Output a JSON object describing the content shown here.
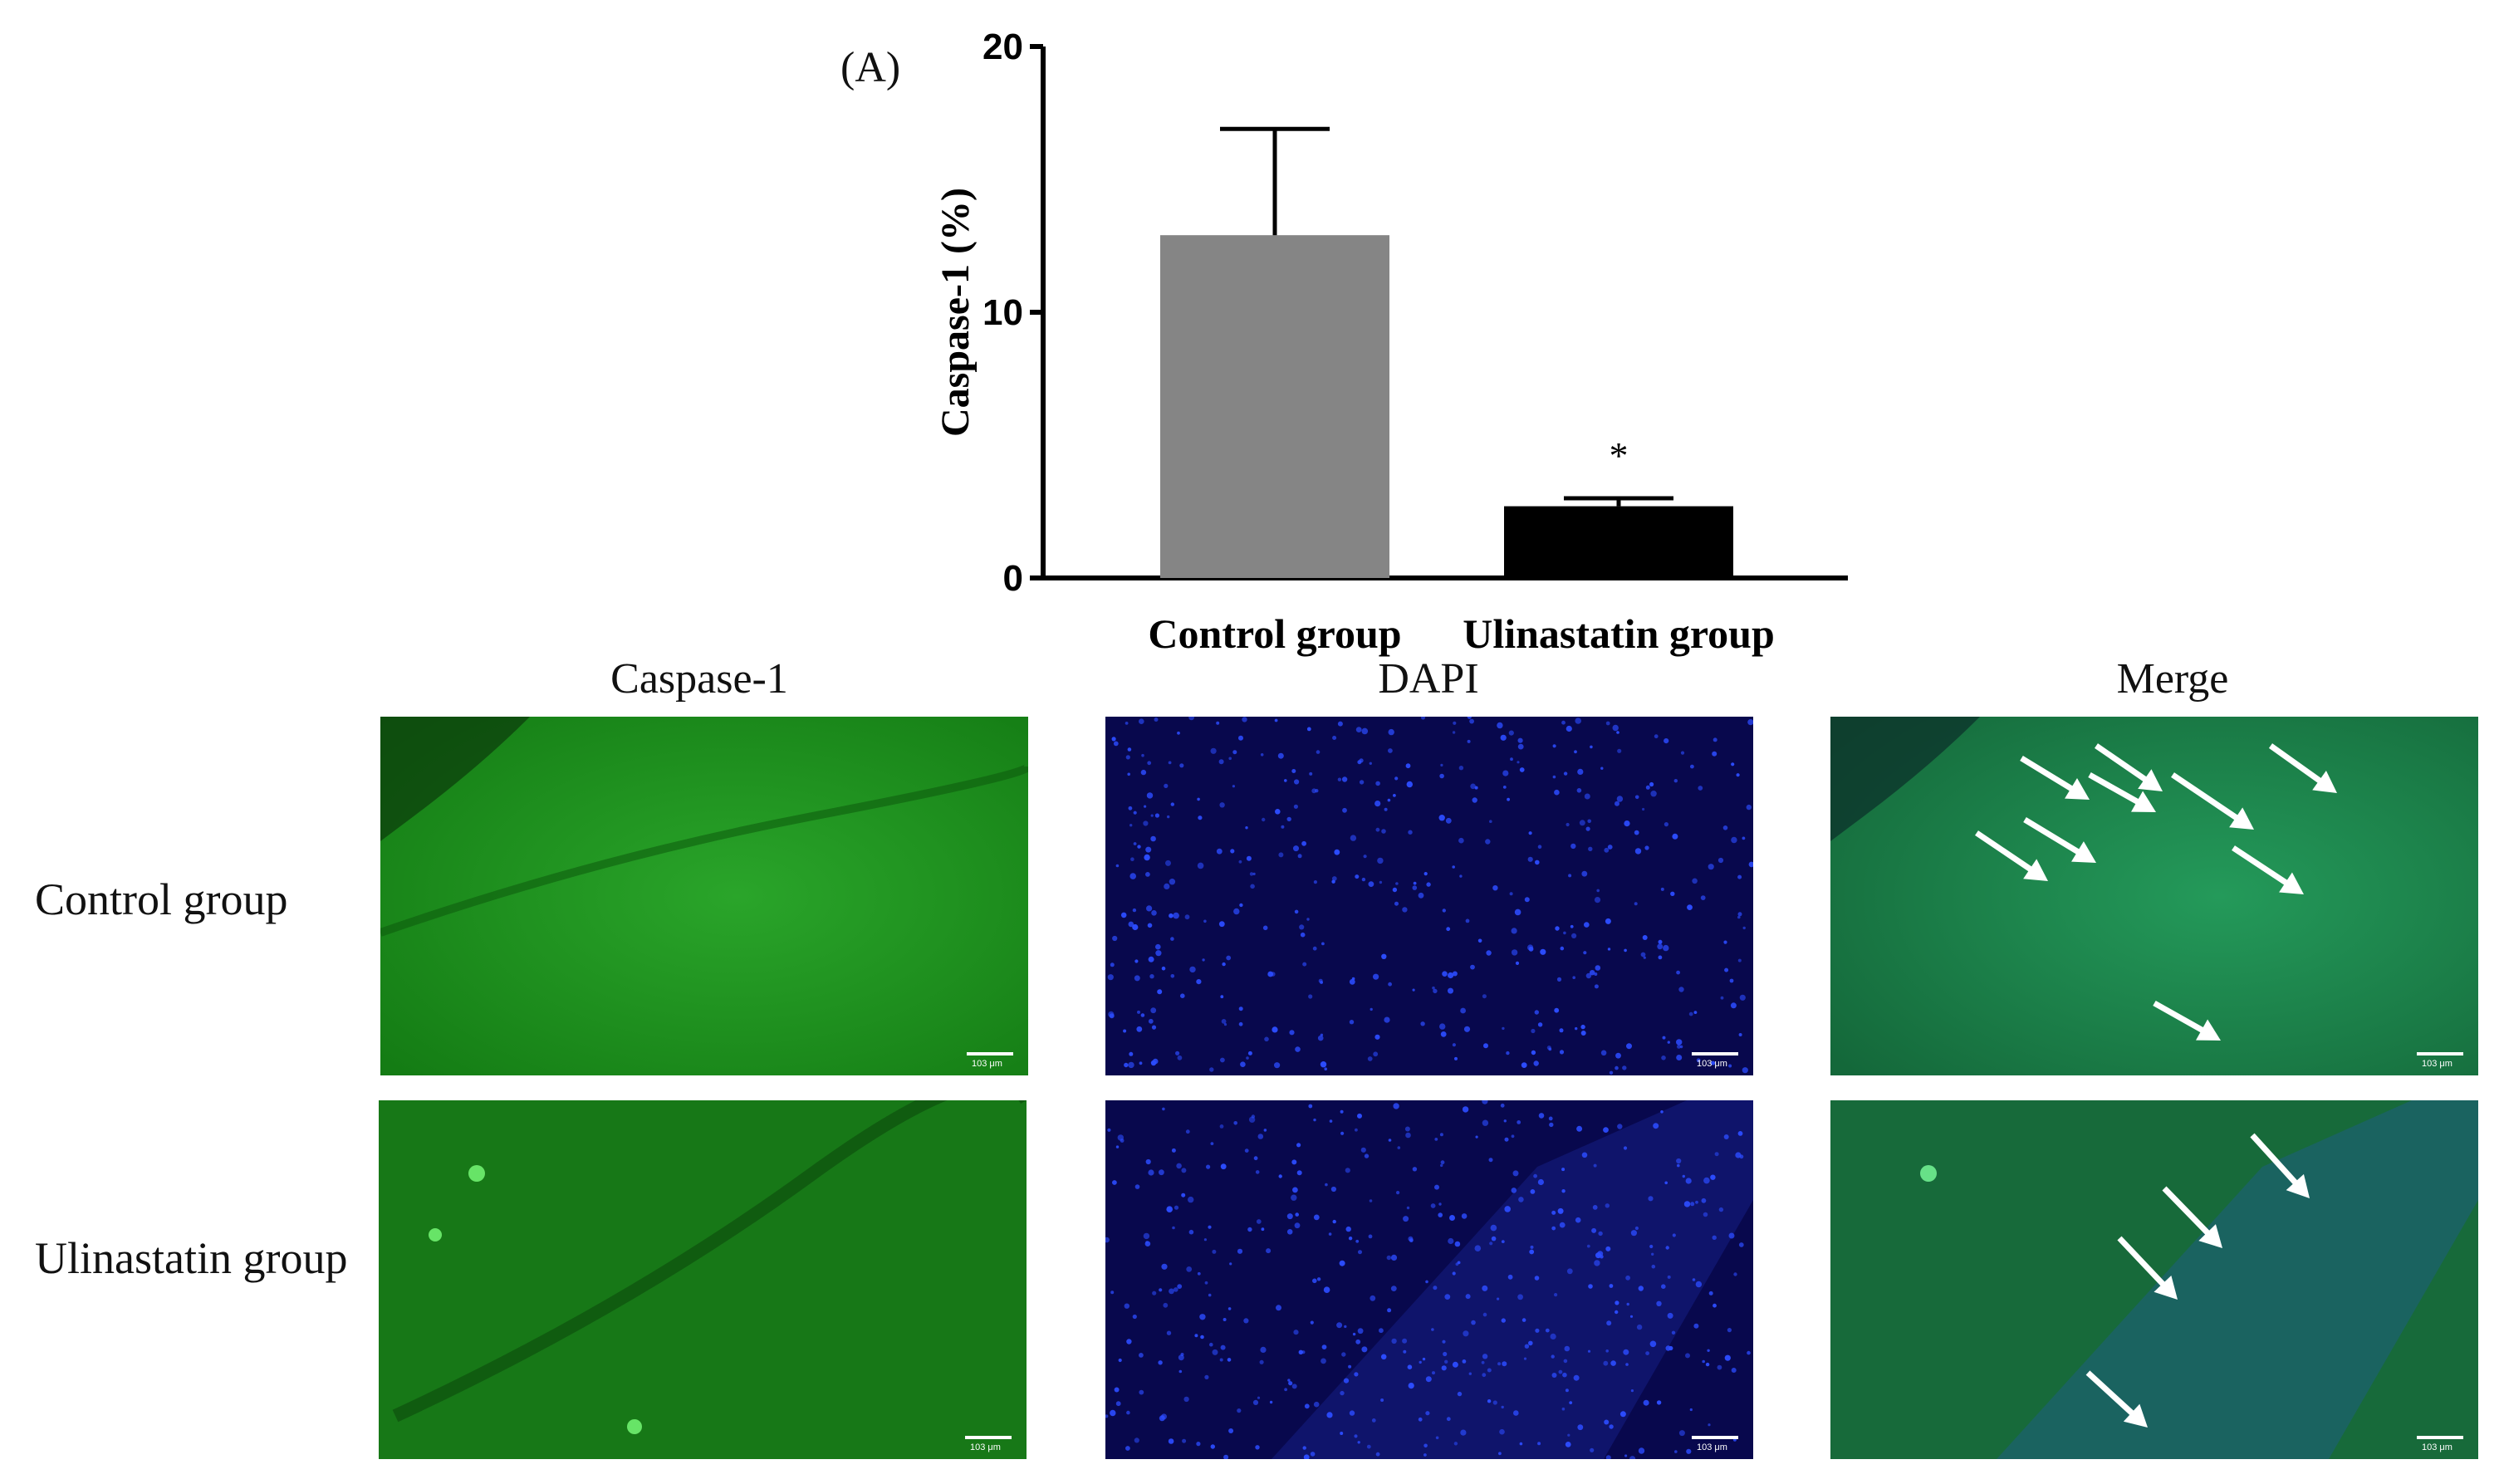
{
  "figure_label": "(A)",
  "chart_data": {
    "type": "bar",
    "categories": [
      "Control group",
      "Ulinastatin group"
    ],
    "values": [
      12.9,
      2.7
    ],
    "error_upper": [
      16.9,
      3.0
    ],
    "significance": [
      "",
      "*"
    ],
    "ylabel": "Caspase-1 (%)",
    "xlabel": "",
    "ylim": [
      0,
      20
    ],
    "yticks": [
      0,
      10,
      20
    ],
    "colors": [
      "#858585",
      "#000000"
    ],
    "grid": false
  },
  "micrographs": {
    "columns": [
      "Caspase-1",
      "DAPI",
      "Merge"
    ],
    "rows": [
      "Control group",
      "Ulinastatin group"
    ],
    "scale_bar": "103 μm",
    "channel_colors": {
      "caspase": "#1f9a1f",
      "dapi": "#0a0a55",
      "merge": "#1e7a45"
    }
  }
}
